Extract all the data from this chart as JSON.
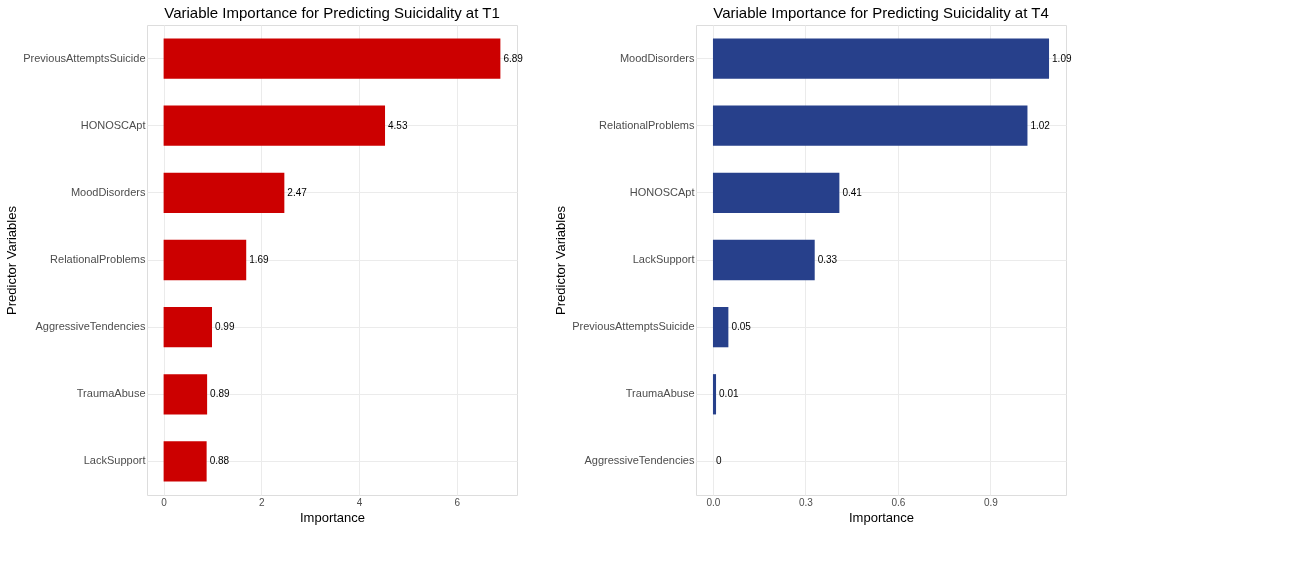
{
  "chart_data": [
    {
      "type": "bar",
      "orientation": "horizontal",
      "title": "Variable Importance for Predicting Suicidality at T1",
      "xlabel": "Importance",
      "ylabel": "Predictor Variables",
      "categories": [
        "PreviousAttemptsSuicide",
        "HONOSCApt",
        "MoodDisorders",
        "RelationalProblems",
        "AggressiveTendencies",
        "TraumaAbuse",
        "LackSupport"
      ],
      "values": [
        6.89,
        4.53,
        2.47,
        1.69,
        0.99,
        0.89,
        0.88
      ],
      "color": "#cc0000",
      "xlim": [
        -0.34,
        7.23
      ],
      "xticks": [
        0,
        2,
        4,
        6
      ],
      "grid": true,
      "data_labels": true
    },
    {
      "type": "bar",
      "orientation": "horizontal",
      "title": "Variable Importance for Predicting Suicidality at T4",
      "xlabel": "Importance",
      "ylabel": "Predictor Variables",
      "categories": [
        "MoodDisorders",
        "RelationalProblems",
        "HONOSCApt",
        "LackSupport",
        "PreviousAttemptsSuicide",
        "TraumaAbuse",
        "AggressiveTendencies"
      ],
      "values": [
        1.09,
        1.02,
        0.41,
        0.33,
        0.05,
        0.01,
        0
      ],
      "color": "#27408b",
      "xlim": [
        -0.055,
        1.145
      ],
      "xticks": [
        {
          "value": 0,
          "label": "0.0"
        },
        {
          "value": 0.3,
          "label": "0.3"
        },
        {
          "value": 0.6,
          "label": "0.6"
        },
        {
          "value": 0.9,
          "label": "0.9"
        }
      ],
      "grid": true,
      "data_labels": true
    }
  ]
}
